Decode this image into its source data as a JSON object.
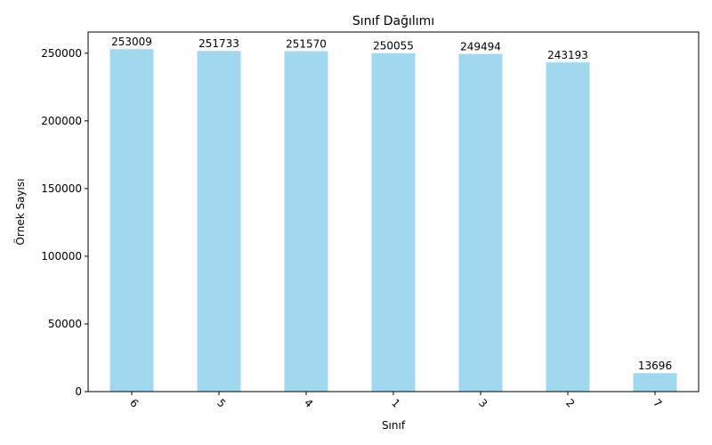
{
  "chart_data": {
    "type": "bar",
    "title": "Sınıf Dağılımı",
    "xlabel": "Sınıf",
    "ylabel": "Örnek Sayısı",
    "categories": [
      "6",
      "5",
      "4",
      "1",
      "3",
      "2",
      "7"
    ],
    "values": [
      253009,
      251733,
      251570,
      250055,
      249494,
      243193,
      13696
    ],
    "data_labels": [
      "253009",
      "251733",
      "251570",
      "250055",
      "249494",
      "243193",
      "13696"
    ],
    "ylim": [
      0,
      265650
    ],
    "yticks": [
      0,
      50000,
      100000,
      150000,
      200000,
      250000
    ],
    "ytick_labels": [
      "0",
      "50000",
      "100000",
      "150000",
      "200000",
      "250000"
    ],
    "bar_color": "#a0d8ef",
    "grid": false,
    "legend": "none"
  }
}
